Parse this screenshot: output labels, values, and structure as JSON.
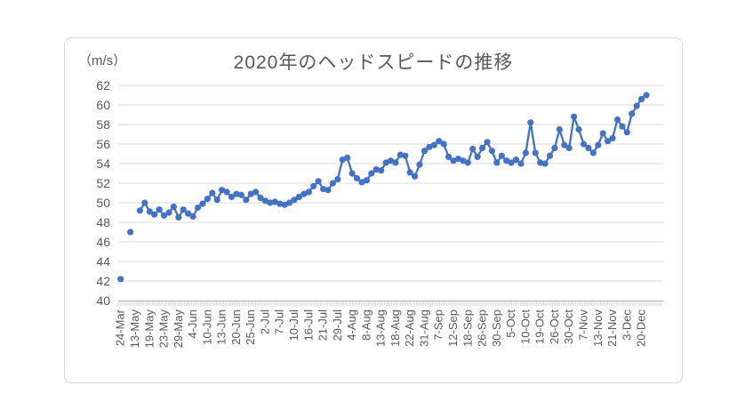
{
  "chart_data": {
    "type": "line",
    "title": "2020年のヘッドスピードの推移",
    "unit_label": "（m/s）",
    "xlabel": "",
    "ylabel": "（m/s）",
    "ylim": [
      40,
      62
    ],
    "ytick_step": 2,
    "yticks": [
      40,
      42,
      44,
      46,
      48,
      50,
      52,
      54,
      56,
      58,
      60,
      62
    ],
    "x_tick_labels": [
      "24-Mar",
      "13-May",
      "19-May",
      "23-May",
      "29-May",
      "4-Jun",
      "10-Jun",
      "13-Jun",
      "20-Jun",
      "25-Jun",
      "2-Jul",
      "7-Jul",
      "10-Jul",
      "16-Jul",
      "21-Jul",
      "29-Jul",
      "4-Aug",
      "8-Aug",
      "13-Aug",
      "18-Aug",
      "22-Aug",
      "31-Aug",
      "7-Sep",
      "12-Sep",
      "18-Sep",
      "26-Sep",
      "30-Sep",
      "5-Oct",
      "10-Oct",
      "19-Oct",
      "26-Oct",
      "30-Oct",
      "7-Nov",
      "13-Nov",
      "21-Nov",
      "3-Dec",
      "20-Dec"
    ],
    "x_label_interval": 3,
    "n_categories": 113,
    "grid": true,
    "legend": "none",
    "colors": {
      "line": "#4472C4",
      "grid": "#D9D9D9",
      "axis": "#BFBFBF",
      "text": "#595959",
      "border": "#D8D8D8"
    },
    "series": [
      {
        "marker": "circle",
        "color": "#4472C4",
        "values": [
          42.2,
          null,
          47.0,
          null,
          49.2,
          50.0,
          49.1,
          48.8,
          49.3,
          48.7,
          49.0,
          49.6,
          48.5,
          49.3,
          48.9,
          48.6,
          49.5,
          49.9,
          50.4,
          51.0,
          50.3,
          51.3,
          51.1,
          50.6,
          50.9,
          50.8,
          50.3,
          50.9,
          51.1,
          50.5,
          50.2,
          50.0,
          50.1,
          49.9,
          49.8,
          50.0,
          50.3,
          50.6,
          50.9,
          51.1,
          51.7,
          52.2,
          51.4,
          51.3,
          52.0,
          52.4,
          54.4,
          54.6,
          53.0,
          52.5,
          52.1,
          52.3,
          53.0,
          53.4,
          53.3,
          54.1,
          54.3,
          54.1,
          54.9,
          54.8,
          53.1,
          52.7,
          53.9,
          55.3,
          55.7,
          55.9,
          56.3,
          56.0,
          54.7,
          54.3,
          54.5,
          54.3,
          54.1,
          55.5,
          54.7,
          55.6,
          56.2,
          55.3,
          54.1,
          54.8,
          54.3,
          54.1,
          54.4,
          54.0,
          55.1,
          58.2,
          55.1,
          54.1,
          54.0,
          54.8,
          55.6,
          57.5,
          55.9,
          55.6,
          58.8,
          57.5,
          56.0,
          55.6,
          55.1,
          55.9,
          57.1,
          56.3,
          56.6,
          58.5,
          57.8,
          57.2,
          59.1,
          59.9,
          60.6,
          61.0,
          null,
          null,
          null
        ]
      }
    ]
  }
}
